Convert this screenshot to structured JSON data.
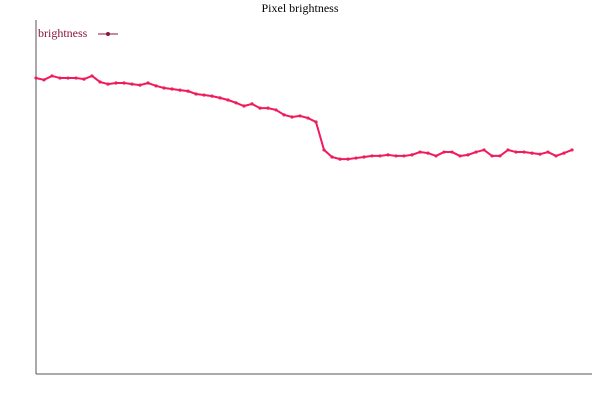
{
  "chart_data": {
    "type": "line",
    "title": "Pixel brightness",
    "series": [
      {
        "name": "brightness",
        "color": "#ee1c5c",
        "values": [
          83.6,
          83.1,
          84.2,
          83.6,
          83.6,
          83.6,
          83.3,
          84.2,
          82.5,
          81.9,
          82.2,
          82.2,
          81.9,
          81.6,
          82.2,
          81.4,
          80.8,
          80.5,
          80.2,
          79.9,
          79.1,
          78.8,
          78.5,
          78.0,
          77.4,
          76.6,
          75.7,
          76.3,
          75.1,
          75.1,
          74.6,
          73.2,
          72.6,
          72.9,
          72.3,
          71.2,
          63.3,
          61.3,
          60.7,
          60.7,
          61.0,
          61.3,
          61.6,
          61.6,
          61.9,
          61.6,
          61.6,
          61.9,
          62.7,
          62.4,
          61.6,
          62.7,
          62.7,
          61.6,
          61.9,
          62.7,
          63.3,
          61.6,
          61.6,
          63.3,
          62.7,
          62.7,
          62.4,
          62.1,
          62.7,
          61.6,
          62.4,
          63.3
        ]
      }
    ],
    "ylim": [
      0,
      100
    ]
  }
}
